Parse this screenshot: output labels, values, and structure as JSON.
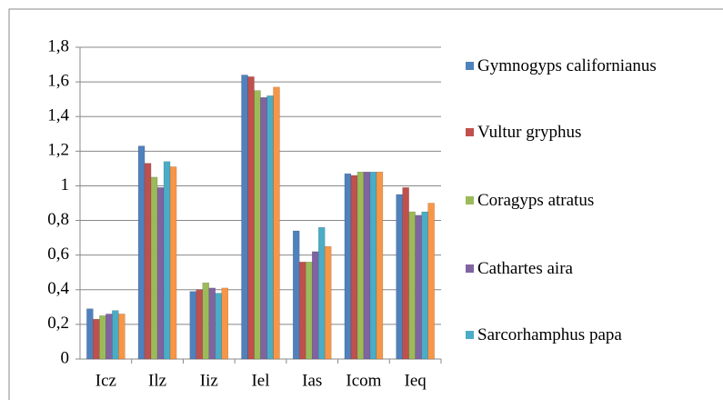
{
  "chart_data": {
    "type": "bar",
    "categories": [
      "Icz",
      "Ilz",
      "Iiz",
      "Iel",
      "Ias",
      "Icom",
      "Ieq"
    ],
    "series": [
      {
        "name": "Gymnogyps californianus",
        "color": "#4f81bd",
        "values": [
          0.29,
          1.23,
          0.39,
          1.64,
          0.74,
          1.07,
          0.95
        ]
      },
      {
        "name": "Vultur gryphus",
        "color": "#c0504d",
        "values": [
          0.23,
          1.13,
          0.4,
          1.63,
          0.56,
          1.06,
          0.99
        ]
      },
      {
        "name": "Coragyps atratus",
        "color": "#9bbb59",
        "values": [
          0.25,
          1.05,
          0.44,
          1.55,
          0.56,
          1.08,
          0.85
        ]
      },
      {
        "name": "Cathartes aira",
        "color": "#8064a2",
        "values": [
          0.26,
          0.99,
          0.41,
          1.51,
          0.62,
          1.08,
          0.83
        ]
      },
      {
        "name": "Sarcorhamphus papa",
        "color": "#4bacc6",
        "values": [
          0.28,
          1.14,
          0.38,
          1.52,
          0.76,
          1.08,
          0.85
        ]
      },
      {
        "color": "#f79646",
        "values": [
          0.26,
          1.11,
          0.41,
          1.57,
          0.65,
          1.08,
          0.9
        ]
      }
    ],
    "ylim": [
      0,
      1.8
    ],
    "yticks": [
      0,
      {
        "value": 0.2,
        "label": "0,2"
      },
      {
        "value": 0.4,
        "label": "0,4"
      },
      {
        "value": 0.6,
        "label": "0,6"
      },
      {
        "value": 0.8,
        "label": "0,8"
      },
      1,
      {
        "value": 1.2,
        "label": "1,2"
      },
      {
        "value": 1.4,
        "label": "1,4"
      },
      {
        "value": 1.6,
        "label": "1,6"
      },
      {
        "value": 1.8,
        "label": "1,8"
      }
    ],
    "grid": true
  }
}
